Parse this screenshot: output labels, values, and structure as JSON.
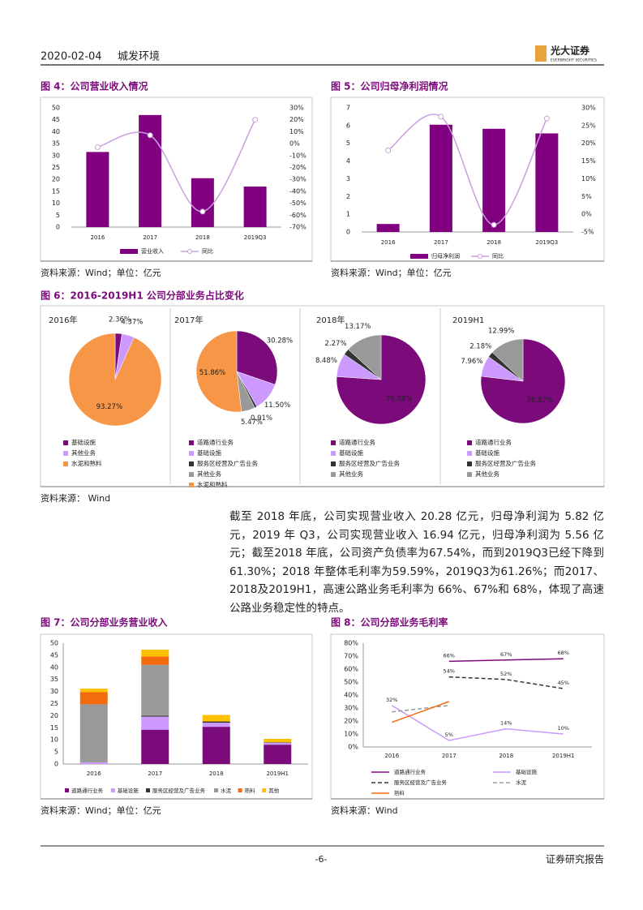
{
  "header": {
    "date": "2020-02-04",
    "company": "城发环境",
    "logo": "光大证券",
    "logo_en": "EVERBRIGHT SECURITIES"
  },
  "figures": [
    {
      "caption": "图 4：公司营业收入情况",
      "source": "资料来源：Wind；单位：亿元",
      "chart_data": {
        "type": "combo",
        "categories": [
          "2016",
          "2017",
          "2018",
          "2019Q3"
        ],
        "series": [
          {
            "name": "营业收入",
            "color": "#800080",
            "type": "bar",
            "values": [
              31.5,
              47,
              20.5,
              17
            ]
          },
          {
            "name": "同比",
            "color": "#c9a0dc",
            "type": "line",
            "axis": "y2",
            "values": [
              -3,
              7,
              -57,
              20
            ]
          }
        ],
        "ylim": [
          0,
          50
        ],
        "yticks": [
          0,
          5,
          10,
          15,
          20,
          25,
          30,
          35,
          40,
          45,
          50
        ],
        "y2lim": [
          -70,
          30
        ],
        "y2ticks": [
          {
            "value": -70,
            "label": "-70%"
          },
          {
            "value": -60,
            "label": "-60%"
          },
          {
            "value": -50,
            "label": "-50%"
          },
          {
            "value": -40,
            "label": "-40%"
          },
          {
            "value": -30,
            "label": "-30%"
          },
          {
            "value": -20,
            "label": "-20%"
          },
          {
            "value": -10,
            "label": "-10%"
          },
          {
            "value": 0,
            "label": "0%"
          },
          {
            "value": 10,
            "label": "10%"
          },
          {
            "value": 20,
            "label": "20%"
          },
          {
            "value": 30,
            "label": "30%"
          }
        ]
      }
    },
    {
      "caption": "图 5：公司归母净利润情况",
      "source": "资料来源：Wind；单位：亿元",
      "chart_data": {
        "type": "combo",
        "categories": [
          "2016",
          "2017",
          "2018",
          "2019Q3"
        ],
        "series": [
          {
            "name": "归母净利润",
            "color": "#800080",
            "type": "bar",
            "values": [
              0.45,
              6.05,
              5.82,
              5.56
            ]
          },
          {
            "name": "同比",
            "color": "#c9a0dc",
            "type": "line",
            "axis": "y2",
            "values": [
              18,
              27.5,
              -3,
              27
            ]
          }
        ],
        "ylim": [
          0,
          7
        ],
        "yticks": [
          0,
          1,
          2,
          3,
          4,
          5,
          6,
          7
        ],
        "y2lim": [
          -5,
          30
        ],
        "y2ticks": [
          {
            "value": -5,
            "label": "-5%"
          },
          {
            "value": 0,
            "label": "0%"
          },
          {
            "value": 5,
            "label": "5%"
          },
          {
            "value": 10,
            "label": "10%"
          },
          {
            "value": 15,
            "label": "15%"
          },
          {
            "value": 20,
            "label": "20%"
          },
          {
            "value": 25,
            "label": "25%"
          },
          {
            "value": 30,
            "label": "30%"
          }
        ]
      }
    },
    {
      "caption": "图 6：2016-2019H1 公司分部业务占比变化",
      "source": "资料来源： Wind",
      "chart_data": [
        {
          "type": "pie",
          "title": "2016年",
          "categories": [
            "基础设施",
            "其他业务",
            "水泥和熟料"
          ],
          "values": [
            2.36,
            4.37,
            93.27
          ],
          "value_labels": [
            "2.36%",
            "4.37%",
            "93.27%"
          ],
          "colors": [
            "#7b0a7b",
            "#cc99ff",
            "#f79646"
          ]
        },
        {
          "type": "pie",
          "title": "2017年",
          "categories": [
            "道路通行业务",
            "基础设施",
            "服务区经营及广告业务",
            "其他业务",
            "水泥和熟料"
          ],
          "values": [
            30.28,
            11.5,
            0.91,
            5.47,
            51.86
          ],
          "value_labels": [
            "30.28%",
            "11.50%",
            "0.91%",
            "5.47%",
            "51.86%"
          ],
          "colors": [
            "#7b0a7b",
            "#cc99ff",
            "#333333",
            "#999999",
            "#f79646"
          ]
        },
        {
          "type": "pie",
          "title": "2018年",
          "categories": [
            "道路通行业务",
            "基础设施",
            "服务区经营及广告业务",
            "其他业务"
          ],
          "values": [
            76.08,
            8.48,
            2.27,
            13.17
          ],
          "value_labels": [
            "76.08%",
            "8.48%",
            "2.27%",
            "13.17%"
          ],
          "colors": [
            "#7b0a7b",
            "#cc99ff",
            "#333333",
            "#999999"
          ]
        },
        {
          "type": "pie",
          "title": "2019H1",
          "categories": [
            "道路通行业务",
            "基础设施",
            "服务区经营及广告业务",
            "其他业务"
          ],
          "values": [
            76.87,
            7.96,
            2.18,
            12.99
          ],
          "value_labels": [
            "76.87%",
            "7.96%",
            "2.18%",
            "12.99%"
          ],
          "colors": [
            "#7b0a7b",
            "#cc99ff",
            "#333333",
            "#999999"
          ]
        }
      ]
    },
    {
      "caption": "图 7：公司分部业务营业收入",
      "source": "资料来源：Wind；单位：亿元",
      "chart_data": {
        "type": "stacked-bar",
        "categories": [
          "2016",
          "2017",
          "2018",
          "2019H1"
        ],
        "series": [
          {
            "name": "道路通行业务",
            "color": "#7b0a7b",
            "values": [
              0,
              14.2,
              15.4,
              8
            ]
          },
          {
            "name": "基础设施",
            "color": "#cc99ff",
            "values": [
              0.7,
              5.4,
              1.7,
              0.8
            ]
          },
          {
            "name": "服务区经营及广告业务",
            "color": "#333333",
            "values": [
              0,
              0.4,
              0.5,
              0.2
            ]
          },
          {
            "name": "水泥",
            "color": "#999999",
            "values": [
              24,
              21,
              0,
              0
            ]
          },
          {
            "name": "熟料",
            "color": "#f26b0f",
            "values": [
              5,
              3.5,
              0,
              0
            ]
          },
          {
            "name": "其他",
            "color": "#ffc000",
            "values": [
              1.5,
              2.8,
              2.7,
              1.4
            ]
          }
        ],
        "ylim": [
          0,
          50
        ],
        "yticks": [
          0,
          5,
          10,
          15,
          20,
          25,
          30,
          35,
          40,
          45,
          50
        ]
      }
    },
    {
      "caption": "图 8：公司分部业务毛利率",
      "source": "资料来源：Wind",
      "chart_data": {
        "type": "line",
        "categories": [
          "2016",
          "2017",
          "2018",
          "2019H1"
        ],
        "series": [
          {
            "name": "道路通行业务",
            "color": "#7b0a7b",
            "values": [
              null,
              66,
              67,
              68
            ],
            "value_labels": [
              null,
              "66%",
              "67%",
              "68%"
            ]
          },
          {
            "name": "基础设施",
            "color": "#cc99ff",
            "values": [
              32,
              5,
              14,
              10
            ],
            "value_labels": [
              "32%",
              "5%",
              "14%",
              "10%"
            ]
          },
          {
            "name": "服务区经营及广告业务",
            "color": "#333333",
            "dash": true,
            "values": [
              null,
              54,
              52,
              45
            ],
            "value_labels": [
              null,
              "54%",
              "52%",
              "45%"
            ]
          },
          {
            "name": "水泥",
            "color": "#999999",
            "dash": true,
            "values": [
              27,
              32,
              null,
              null
            ]
          },
          {
            "name": "熟料",
            "color": "#f26b0f",
            "values": [
              19,
              35,
              null,
              null
            ]
          }
        ],
        "ylim": [
          0,
          80
        ],
        "yticks": [
          {
            "value": 0,
            "label": "0%"
          },
          {
            "value": 10,
            "label": "10%"
          },
          {
            "value": 20,
            "label": "20%"
          },
          {
            "value": 30,
            "label": "30%"
          },
          {
            "value": 40,
            "label": "40%"
          },
          {
            "value": 50,
            "label": "50%"
          },
          {
            "value": 60,
            "label": "60%"
          },
          {
            "value": 70,
            "label": "70%"
          },
          {
            "value": 80,
            "label": "80%"
          }
        ]
      }
    }
  ],
  "body": {
    "paragraph": "截至 2018 年底，公司实现营业收入 20.28 亿元，归母净利润为 5.82 亿元，2019 年 Q3，公司实现营业收入 16.94 亿元，归母净利润为 5.56 亿元；截至2018 年底，公司资产负债率为67.54%，而到2019Q3已经下降到61.30%；2018 年整体毛利率为59.59%，2019Q3为61.26%；而2017、2018及2019H1，高速公路业务毛利率为 66%、67%和 68%，体现了高速公路业务稳定性的特点。"
  },
  "footer": {
    "page": "-6-",
    "label": "证券研究报告"
  }
}
